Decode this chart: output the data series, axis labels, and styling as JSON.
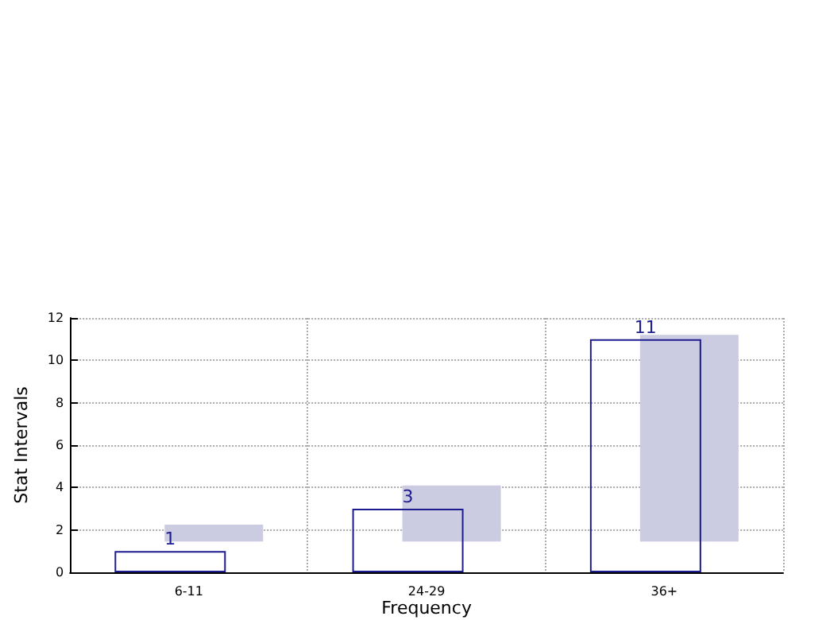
{
  "chart_data": {
    "type": "bar",
    "xlabel": "Frequency",
    "ylabel": "Stat Intervals",
    "categories": [
      "6-11",
      "24-29",
      "36+"
    ],
    "series": [
      {
        "color": "#1c1c8e",
        "values": [
          1,
          3,
          11
        ],
        "value_labels": [
          "1",
          "3",
          "11"
        ]
      },
      {
        "color": "#cbcbe2",
        "values": [
          0.8,
          2.65,
          9.75
        ],
        "base": [
          1.45,
          1.45,
          1.45
        ]
      }
    ],
    "ylim": [
      0,
      12
    ],
    "yticks": [
      0,
      2,
      4,
      6,
      8,
      10,
      12
    ],
    "grid": true
  }
}
